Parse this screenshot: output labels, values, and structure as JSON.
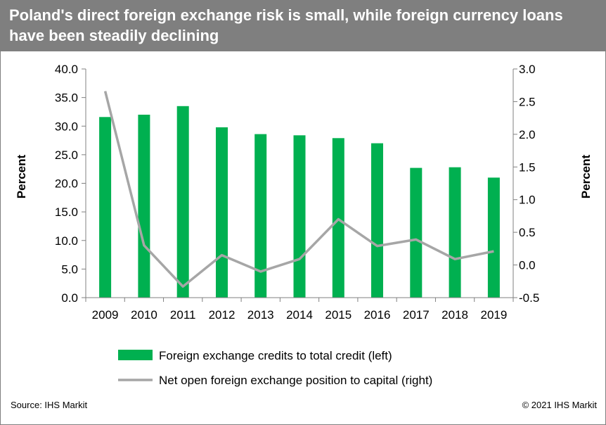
{
  "header": {
    "title": "Poland's direct foreign exchange risk is small, while foreign currency loans have been steadily declining"
  },
  "footer": {
    "source": "Source: IHS Markit",
    "copyright": "© 2021 IHS Markit"
  },
  "colors": {
    "bar": "#00b050",
    "line": "#a6a6a6",
    "axis": "#808080"
  },
  "chart_data": {
    "type": "bar+line",
    "categories": [
      "2009",
      "2010",
      "2011",
      "2012",
      "2013",
      "2014",
      "2015",
      "2016",
      "2017",
      "2018",
      "2019"
    ],
    "series": [
      {
        "name": "Foreign exchange credits to total credit (left)",
        "type": "bar",
        "axis": "left",
        "values": [
          31.6,
          32.0,
          33.5,
          29.8,
          28.6,
          28.4,
          27.9,
          27.0,
          22.7,
          22.8,
          21.0
        ]
      },
      {
        "name": "Net open foreign exchange position to capital (right)",
        "type": "line",
        "axis": "right",
        "values": [
          2.66,
          0.3,
          -0.33,
          0.15,
          -0.1,
          0.09,
          0.7,
          0.29,
          0.39,
          0.09,
          0.21
        ]
      }
    ],
    "y_left": {
      "label": "Percent",
      "range": [
        0,
        40
      ],
      "ticks": [
        "0.0",
        "5.0",
        "10.0",
        "15.0",
        "20.0",
        "25.0",
        "30.0",
        "35.0",
        "40.0"
      ]
    },
    "y_right": {
      "label": "Percent",
      "range": [
        -0.5,
        3.0
      ],
      "ticks": [
        "-0.5",
        "0.0",
        "0.5",
        "1.0",
        "1.5",
        "2.0",
        "2.5",
        "3.0"
      ]
    },
    "grid": false,
    "legend_position": "bottom"
  }
}
